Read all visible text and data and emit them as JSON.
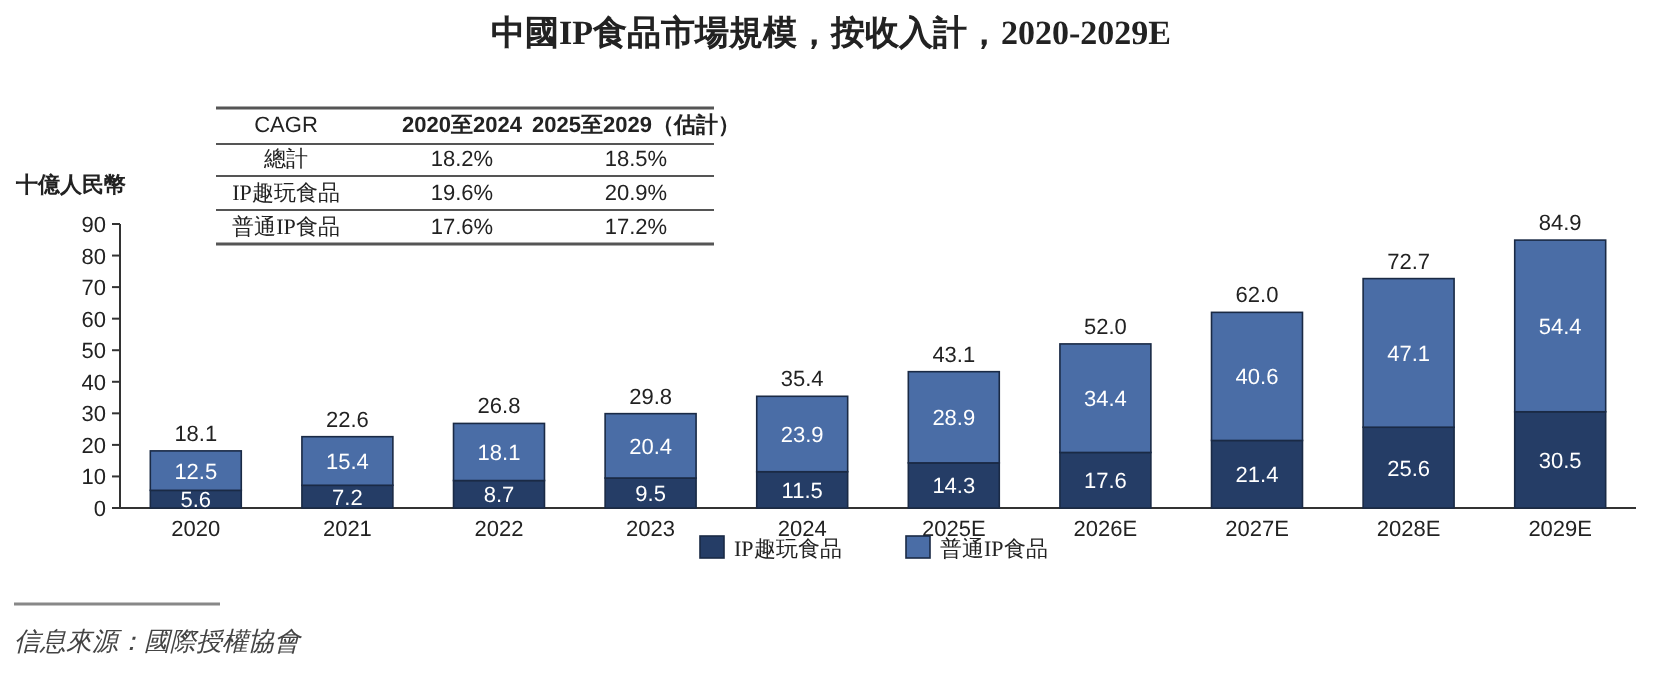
{
  "chart_data": {
    "type": "bar",
    "title": "中國IP食品市場規模，按收入計，2020-2029E",
    "ylabel": "十億人民幣",
    "categories": [
      "2020",
      "2021",
      "2022",
      "2023",
      "2024",
      "2025E",
      "2026E",
      "2027E",
      "2028E",
      "2029E"
    ],
    "stacked": true,
    "series": [
      {
        "name": "IP趣玩食品",
        "color": "#253d66",
        "values": [
          5.6,
          7.2,
          8.7,
          9.5,
          11.5,
          14.3,
          17.6,
          21.4,
          25.6,
          30.5
        ]
      },
      {
        "name": "普通IP食品",
        "color": "#4a6da6",
        "values": [
          12.5,
          15.4,
          18.1,
          20.4,
          23.9,
          28.9,
          34.4,
          40.6,
          47.1,
          54.4
        ]
      }
    ],
    "totals": [
      "18.1",
      "22.6",
      "26.8",
      "29.8",
      "35.4",
      "43.1",
      "52.0",
      "62.0",
      "72.7",
      "84.9"
    ],
    "data_labels": true,
    "ylim": [
      0,
      90
    ],
    "yticks": [
      0,
      10,
      20,
      30,
      40,
      50,
      60,
      70,
      80,
      90
    ],
    "legend": "bottom",
    "annotations": [
      "CAGR",
      "2020至2024",
      "2025至2029（估計）",
      "總計",
      "18.2%",
      "18.5%",
      "IP趣玩食品",
      "19.6%",
      "20.9%",
      "普通IP食品",
      "17.6%",
      "17.2%",
      "信息來源：國際授權協會"
    ]
  }
}
